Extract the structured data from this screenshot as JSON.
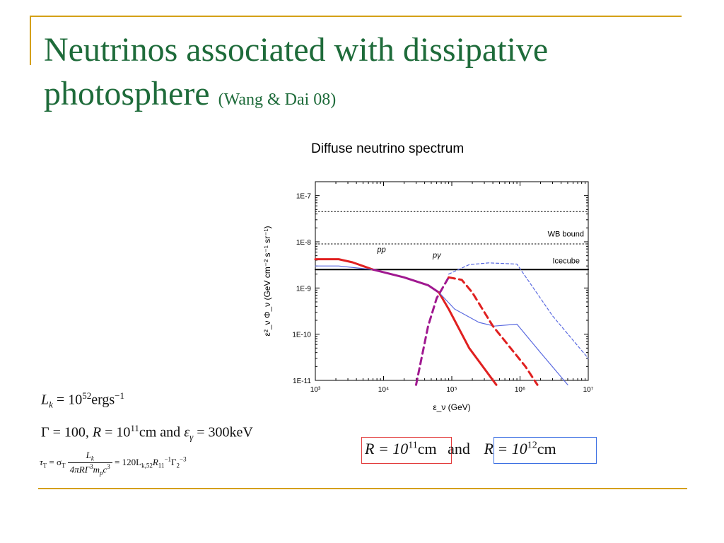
{
  "slide": {
    "title_main": "Neutrinos associated with dissipative photosphere",
    "title_ref": "(Wang & Dai 08)",
    "chart_caption": "Diffuse neutrino spectrum"
  },
  "equations": {
    "lk": {
      "lhs": "L",
      "sub": "k",
      "eq": "=",
      "base": "10",
      "exp": "52",
      "unit": "ergs",
      "unit_exp": "−1"
    },
    "params": {
      "gamma": "Γ",
      "gamma_val": "= 100,",
      "R": "R",
      "R_eq": "= 10",
      "R_exp": "11",
      "cm_and": "cm and",
      "eps": "ε",
      "eps_sub": "γ",
      "eps_val": "= 300keV"
    },
    "tau": {
      "lhs": "τ",
      "lhs_sub": "T",
      "eq1": "= σ",
      "sigma_sub": "T",
      "num": "L",
      "num_sub": "k",
      "den": "4πRΓ",
      "den_exp": "3",
      "den_mp": "m",
      "den_mp_sub": "p",
      "den_c": "c",
      "den_c_exp": "3",
      "rhs": "= 120L",
      "rhs_sub1": "k,52",
      "rhs_R": "R",
      "rhs_R_sub": "11",
      "rhs_R_exp": "−1",
      "rhs_G": "Γ",
      "rhs_G_sub": "2",
      "rhs_G_exp": "−3"
    },
    "boxes": {
      "r1_pre": "R = 10",
      "r1_exp": "11",
      "r1_unit": "cm",
      "and": "and",
      "r2_pre": "R = 10",
      "r2_exp": "12",
      "r2_unit": "cm"
    }
  },
  "chart_data": {
    "type": "line",
    "title": "Diffuse neutrino spectrum",
    "xlabel": "ε_ν (GeV)",
    "ylabel": "ε²_ν Φ_ν (GeV cm⁻² s⁻¹ sr⁻¹)",
    "x_scale": "log",
    "y_scale": "log",
    "xlim": [
      1000,
      10000000
    ],
    "ylim": [
      1e-11,
      2e-07
    ],
    "x_ticks": [
      "10³",
      "10⁴",
      "10⁵",
      "10⁶",
      "10⁷"
    ],
    "y_ticks": [
      "1E-11",
      "1E-10",
      "1E-9",
      "1E-8",
      "1E-7"
    ],
    "annotations": [
      "pp",
      "pγ",
      "WB bound",
      "Icecube"
    ],
    "colors": {
      "red": "#e02020",
      "blue": "#5a6ae0",
      "magenta": "#a01890",
      "black": "#000000"
    },
    "series": [
      {
        "color": "black",
        "style": "solid",
        "points": [
          [
            1000,
            2.5e-09
          ],
          [
            10000000,
            2.5e-09
          ]
        ]
      },
      {
        "color": "black",
        "style": "dotted",
        "points": [
          [
            1000,
            4.5e-08
          ],
          [
            10000000,
            4.5e-08
          ]
        ]
      },
      {
        "color": "black",
        "style": "dotted",
        "points": [
          [
            1000,
            9e-09
          ],
          [
            10000000,
            9e-09
          ]
        ]
      },
      {
        "color": "red",
        "style": "solid",
        "points": [
          [
            1000,
            4.2e-09
          ],
          [
            2200,
            4.2e-09
          ],
          [
            3500,
            3.6e-09
          ],
          [
            7000,
            2.5e-09
          ]
        ]
      },
      {
        "color": "blue",
        "style": "solid",
        "points": [
          [
            1000,
            3e-09
          ],
          [
            2200,
            3e-09
          ],
          [
            7000,
            2.5e-09
          ]
        ]
      },
      {
        "color": "magenta",
        "style": "solid",
        "points": [
          [
            7000,
            2.5e-09
          ],
          [
            20000,
            1.7e-09
          ],
          [
            45000,
            1.15e-09
          ],
          [
            65000,
            8e-10
          ]
        ]
      },
      {
        "color": "red",
        "style": "solid",
        "points": [
          [
            65000,
            8e-10
          ],
          [
            90000,
            3.5e-10
          ],
          [
            180000,
            5e-11
          ],
          [
            450000,
            8e-12
          ]
        ]
      },
      {
        "color": "blue",
        "style": "solid",
        "points": [
          [
            65000,
            8e-10
          ],
          [
            110000,
            3.5e-10
          ],
          [
            250000,
            1.8e-10
          ],
          [
            420000,
            1.5e-10
          ],
          [
            900000,
            1.65e-10
          ],
          [
            2000000,
            4e-11
          ],
          [
            5000000,
            8e-12
          ]
        ]
      },
      {
        "color": "magenta",
        "style": "dashed",
        "points": [
          [
            30000,
            8e-12
          ],
          [
            45000,
            1.5e-10
          ],
          [
            60000,
            6e-10
          ],
          [
            90000,
            1.7e-09
          ]
        ]
      },
      {
        "color": "red",
        "style": "dashed",
        "points": [
          [
            90000,
            1.7e-09
          ],
          [
            140000,
            1.5e-09
          ],
          [
            200000,
            8e-10
          ],
          [
            400000,
            1.5e-10
          ],
          [
            1200000,
            2e-11
          ],
          [
            1800000,
            8e-12
          ]
        ]
      },
      {
        "color": "blue",
        "style": "dashed",
        "points": [
          [
            90000,
            2e-09
          ],
          [
            180000,
            3.2e-09
          ],
          [
            350000,
            3.5e-09
          ],
          [
            900000,
            3.3e-09
          ],
          [
            3000000,
            2.5e-10
          ],
          [
            10000000,
            3e-11
          ]
        ]
      }
    ]
  }
}
